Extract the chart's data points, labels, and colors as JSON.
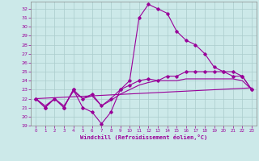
{
  "bg_color": "#cce9e9",
  "line_color": "#990099",
  "grid_color": "#aacccc",
  "xlabel": "Windchill (Refroidissement éolien,°C)",
  "xlim": [
    -0.5,
    23.5
  ],
  "ylim": [
    19,
    32.8
  ],
  "xticks": [
    0,
    1,
    2,
    3,
    4,
    5,
    6,
    7,
    8,
    9,
    10,
    11,
    12,
    13,
    14,
    15,
    16,
    17,
    18,
    19,
    20,
    21,
    22,
    23
  ],
  "yticks": [
    19,
    20,
    21,
    22,
    23,
    24,
    25,
    26,
    27,
    28,
    29,
    30,
    31,
    32
  ],
  "curve1_x": [
    0,
    1,
    2,
    3,
    4,
    5,
    6,
    7,
    8,
    9,
    10,
    11,
    12,
    13,
    14,
    15,
    16,
    17,
    18,
    19,
    20,
    21,
    22,
    23
  ],
  "curve1_y": [
    22.0,
    21.0,
    22.0,
    21.0,
    23.0,
    21.0,
    20.5,
    19.2,
    20.5,
    23.0,
    24.0,
    31.0,
    32.5,
    32.0,
    31.5,
    29.5,
    28.5,
    28.0,
    27.0,
    25.5,
    25.0,
    24.5,
    24.5,
    23.0
  ],
  "curve2_x": [
    0,
    1,
    2,
    3,
    4,
    5,
    6,
    7,
    8,
    9,
    10,
    11,
    12,
    13,
    14,
    15,
    16,
    17,
    18,
    19,
    20,
    21,
    22,
    23
  ],
  "curve2_y": [
    22.0,
    21.0,
    22.0,
    21.0,
    23.0,
    22.0,
    22.5,
    21.2,
    22.0,
    23.0,
    23.5,
    24.0,
    24.2,
    24.0,
    24.5,
    24.5,
    25.0,
    25.0,
    25.0,
    25.0,
    25.0,
    25.0,
    24.5,
    23.0
  ],
  "curve3_x": [
    0,
    1,
    2,
    3,
    4,
    5,
    6,
    7,
    8,
    9,
    10,
    11,
    12,
    13,
    14,
    15,
    16,
    17,
    18,
    19,
    20,
    21,
    22,
    23
  ],
  "curve3_y": [
    22.0,
    21.2,
    22.0,
    21.2,
    22.8,
    22.0,
    22.3,
    21.2,
    21.8,
    22.5,
    23.0,
    23.5,
    23.8,
    24.0,
    24.0,
    24.0,
    24.2,
    24.2,
    24.2,
    24.2,
    24.2,
    24.2,
    24.0,
    23.0
  ],
  "curve4_x": [
    0,
    23
  ],
  "curve4_y": [
    22.0,
    23.2
  ]
}
